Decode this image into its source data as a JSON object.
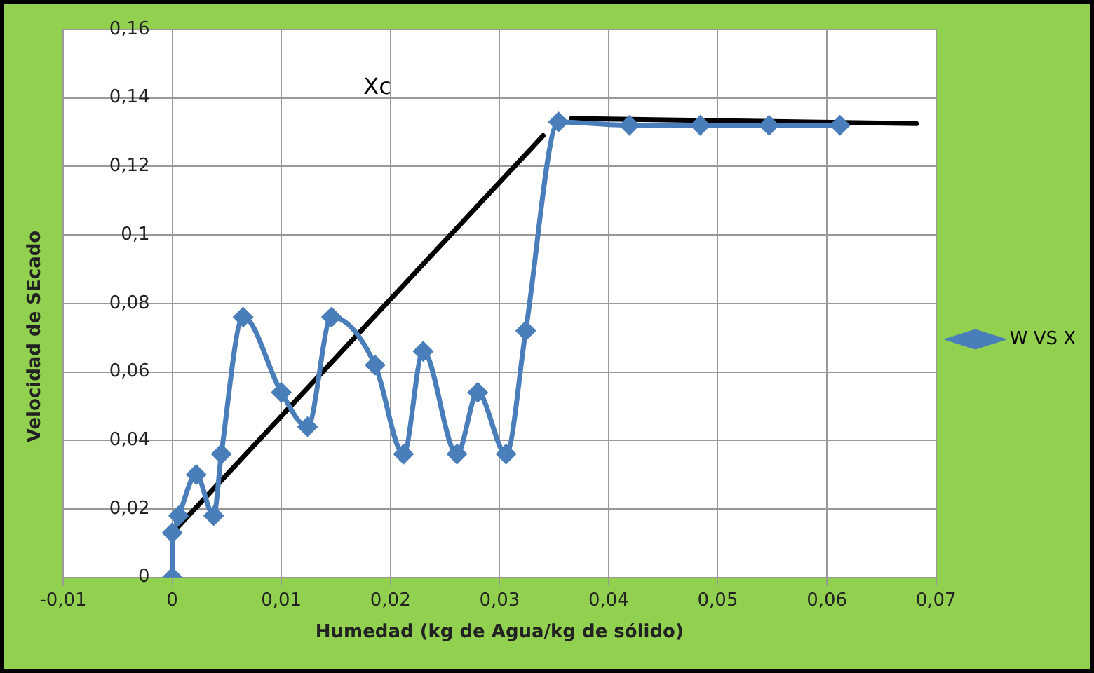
{
  "chart_data": {
    "type": "line",
    "xlabel": "Humedad (kg de Agua/kg de sólido)",
    "ylabel": "Velocidad de SEcado",
    "xlim": [
      -0.01,
      0.07
    ],
    "xticks": [
      {
        "value": -0.01,
        "label": "-0,01"
      },
      0,
      {
        "value": 0.01,
        "label": "0,01"
      },
      {
        "value": 0.02,
        "label": "0,02"
      },
      {
        "value": 0.03,
        "label": "0,03"
      },
      {
        "value": 0.04,
        "label": "0,04"
      },
      {
        "value": 0.05,
        "label": "0,05"
      },
      {
        "value": 0.06,
        "label": "0,06"
      },
      {
        "value": 0.07,
        "label": "0,07"
      }
    ],
    "ylim": [
      0,
      0.16
    ],
    "yticks": [
      0,
      {
        "value": 0.02,
        "label": "0,02"
      },
      {
        "value": 0.04,
        "label": "0,04"
      },
      {
        "value": 0.06,
        "label": "0,06"
      },
      {
        "value": 0.08,
        "label": "0,08"
      },
      {
        "value": 0.1,
        "label": "0,1"
      },
      {
        "value": 0.12,
        "label": "0,12"
      },
      {
        "value": 0.14,
        "label": "0,14"
      },
      {
        "value": 0.16,
        "label": "0,16"
      }
    ],
    "grid": true,
    "legend": "right",
    "marker": "diamond",
    "annotations": [
      "Xc"
    ],
    "series": [
      {
        "name": "W VS X",
        "color": "#4a7ebb",
        "x": [
          0,
          0,
          0.0006,
          0.0022,
          0.0038,
          0.0045,
          0.0065,
          0.01,
          0.0124,
          0.0146,
          0.0186,
          0.0212,
          0.023,
          0.0261,
          0.028,
          0.0306,
          0.0324,
          0.0354,
          0.0419,
          0.0484,
          0.0547,
          0.0612
        ],
        "values": [
          0,
          0.013,
          0.018,
          0.03,
          0.018,
          0.036,
          0.076,
          0.054,
          0.044,
          0.076,
          0.062,
          0.036,
          0.066,
          0.036,
          0.054,
          0.036,
          0.072,
          0.133,
          0.132,
          0.132,
          0.132,
          0.132
        ]
      },
      {
        "type": "line",
        "color": "#000000",
        "marker": "none",
        "x": [
          0.0006,
          0.034
        ],
        "values": [
          0.015,
          0.129
        ]
      },
      {
        "type": "line",
        "color": "#000000",
        "marker": "none",
        "x": [
          0.0366,
          0.0682
        ],
        "values": [
          0.134,
          0.1325
        ]
      }
    ]
  }
}
